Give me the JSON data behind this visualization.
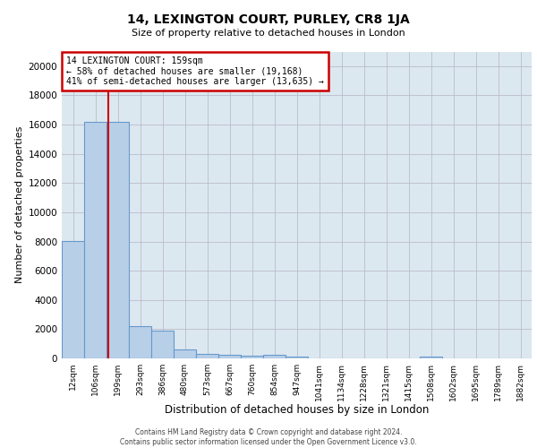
{
  "title1": "14, LEXINGTON COURT, PURLEY, CR8 1JA",
  "title2": "Size of property relative to detached houses in London",
  "xlabel": "Distribution of detached houses by size in London",
  "ylabel": "Number of detached properties",
  "bin_labels": [
    "12sqm",
    "106sqm",
    "199sqm",
    "293sqm",
    "386sqm",
    "480sqm",
    "573sqm",
    "667sqm",
    "760sqm",
    "854sqm",
    "947sqm",
    "1041sqm",
    "1134sqm",
    "1228sqm",
    "1321sqm",
    "1415sqm",
    "1508sqm",
    "1602sqm",
    "1695sqm",
    "1789sqm",
    "1882sqm"
  ],
  "bar_values": [
    8050,
    16200,
    16200,
    2200,
    1900,
    600,
    300,
    250,
    180,
    220,
    120,
    0,
    0,
    0,
    0,
    0,
    120,
    0,
    0,
    0,
    0
  ],
  "bar_color": "#b8cfe8",
  "bar_edgecolor": "#6699cc",
  "annotation_line1": "14 LEXINGTON COURT: 159sqm",
  "annotation_line2": "← 58% of detached houses are smaller (19,168)",
  "annotation_line3": "41% of semi-detached houses are larger (13,635) →",
  "annotation_box_facecolor": "#ffffff",
  "annotation_box_edgecolor": "#cc0000",
  "vline_color": "#cc0000",
  "ylim": [
    0,
    21000
  ],
  "yticks": [
    0,
    2000,
    4000,
    6000,
    8000,
    10000,
    12000,
    14000,
    16000,
    18000,
    20000
  ],
  "grid_color": "#bbbbcc",
  "bg_color": "#dce8f0",
  "footer1": "Contains HM Land Registry data © Crown copyright and database right 2024.",
  "footer2": "Contains public sector information licensed under the Open Government Licence v3.0."
}
